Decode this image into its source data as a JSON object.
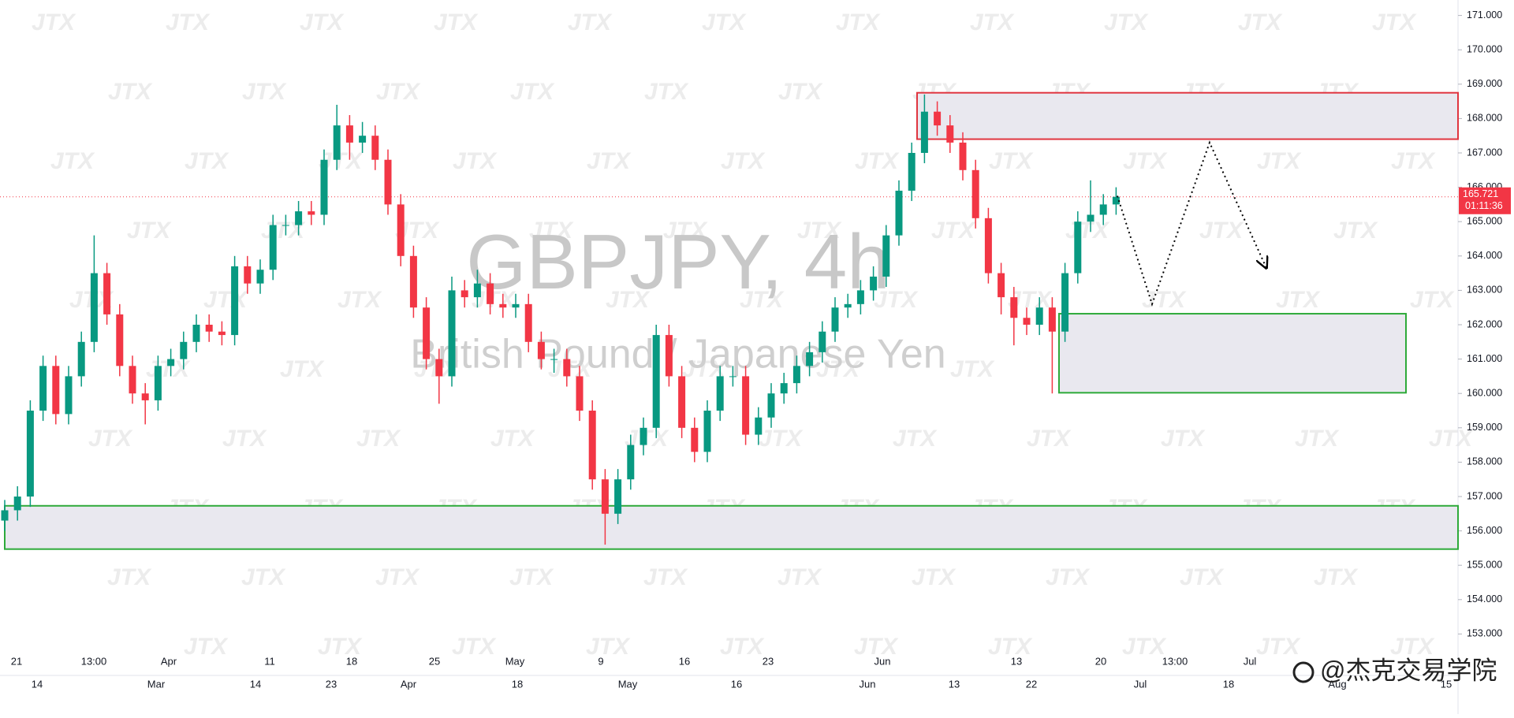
{
  "chart_data": {
    "type": "candlestick",
    "title": "GBPJPY, 4h",
    "subtitle": "British Pound / Japanese Yen",
    "watermark": "JTX",
    "brand": "@杰克交易学院",
    "countdown": "01:11:36",
    "up_color": "#089981",
    "down_color": "#f23645",
    "ylim": [
      153,
      171
    ],
    "yticks": [
      {
        "value": 153,
        "label": "153.000"
      },
      {
        "value": 154,
        "label": "154.000"
      },
      {
        "value": 155,
        "label": "155.000"
      },
      {
        "value": 156,
        "label": "156.000"
      },
      {
        "value": 157,
        "label": "157.000"
      },
      {
        "value": 158,
        "label": "158.000"
      },
      {
        "value": 159,
        "label": "159.000"
      },
      {
        "value": 160,
        "label": "160.000"
      },
      {
        "value": 161,
        "label": "161.000"
      },
      {
        "value": 162,
        "label": "162.000"
      },
      {
        "value": 163,
        "label": "163.000"
      },
      {
        "value": 164,
        "label": "164.000"
      },
      {
        "value": 165,
        "label": "165.000"
      },
      {
        "value": 166,
        "label": "166.000"
      },
      {
        "value": 167,
        "label": "167.000"
      },
      {
        "value": 168,
        "label": "168.000"
      },
      {
        "value": 169,
        "label": "169.000"
      },
      {
        "value": 170,
        "label": "170.000"
      },
      {
        "value": 171,
        "label": "171.000"
      }
    ],
    "xlabels_top": [
      "21",
      "13:00",
      "Apr",
      "11",
      "18",
      "25",
      "May",
      "9",
      "16",
      "23",
      "Jun",
      "13",
      "20",
      "13:00",
      "Jul"
    ],
    "xlabels_bottom": [
      "14",
      "Mar",
      "14",
      "23",
      "Apr",
      "18",
      "May",
      "16",
      "Jun",
      "13",
      "22",
      "Jul",
      "18",
      "Aug",
      "15"
    ],
    "open": [
      156.3,
      156.6,
      157.0,
      159.5,
      160.8,
      159.4,
      160.5,
      161.5,
      163.5,
      162.3,
      160.8,
      160.0,
      159.8,
      160.8,
      161.0,
      161.5,
      162.0,
      161.8,
      161.7,
      163.7,
      163.2,
      163.6,
      164.9,
      164.9,
      165.3,
      165.2,
      166.8,
      167.8,
      167.3,
      167.5,
      166.8,
      165.5,
      164.0,
      162.5,
      161.0,
      160.5,
      163.0,
      162.8,
      163.2,
      162.6,
      162.5,
      162.6,
      161.5,
      161.0,
      161.0,
      160.5,
      159.5,
      157.5,
      156.5,
      157.5,
      158.5,
      159.0,
      161.7,
      160.5,
      159.0,
      158.3,
      159.5,
      160.5,
      160.5,
      158.8,
      159.3,
      160.0,
      160.3,
      160.8,
      161.2,
      161.8,
      162.5,
      162.6,
      163.0,
      163.4,
      164.6,
      165.9,
      167.0,
      168.2,
      167.8,
      167.3,
      166.5,
      165.1,
      163.5,
      162.8,
      162.2,
      162.0,
      162.5,
      161.8,
      163.5,
      165.0,
      165.2,
      165.5
    ],
    "high": [
      156.9,
      157.3,
      159.8,
      161.1,
      161.1,
      160.8,
      161.8,
      164.6,
      163.8,
      162.6,
      161.1,
      160.3,
      161.1,
      161.3,
      161.8,
      162.3,
      162.3,
      162.1,
      164.0,
      164.0,
      163.9,
      165.2,
      165.2,
      165.6,
      165.6,
      167.1,
      168.4,
      168.1,
      167.9,
      167.8,
      167.1,
      165.8,
      164.3,
      162.8,
      161.3,
      163.4,
      163.3,
      163.6,
      163.5,
      162.9,
      162.9,
      162.9,
      161.8,
      161.3,
      161.3,
      160.8,
      159.8,
      157.8,
      157.8,
      158.8,
      159.3,
      162.0,
      162.0,
      160.8,
      159.3,
      159.8,
      160.8,
      160.8,
      160.8,
      159.6,
      160.3,
      160.6,
      161.1,
      161.5,
      162.1,
      162.8,
      162.9,
      163.3,
      163.7,
      164.9,
      166.2,
      167.3,
      168.7,
      168.5,
      168.1,
      167.6,
      166.8,
      165.4,
      163.8,
      163.1,
      162.5,
      162.8,
      162.8,
      163.8,
      165.3,
      166.2,
      165.8,
      166.0
    ],
    "low": [
      156.0,
      156.3,
      156.7,
      159.2,
      159.1,
      159.1,
      160.2,
      161.2,
      162.0,
      160.5,
      159.7,
      159.1,
      159.5,
      160.5,
      160.7,
      161.2,
      161.5,
      161.4,
      161.4,
      162.9,
      162.9,
      163.3,
      164.6,
      164.6,
      164.9,
      164.9,
      166.5,
      166.8,
      167.0,
      166.5,
      165.2,
      163.7,
      162.2,
      160.7,
      159.7,
      160.2,
      162.5,
      162.5,
      162.3,
      162.2,
      162.2,
      161.2,
      160.7,
      160.6,
      160.2,
      159.2,
      157.2,
      155.6,
      156.2,
      157.2,
      158.2,
      158.7,
      160.2,
      158.7,
      158.0,
      158.0,
      159.2,
      160.2,
      158.5,
      158.5,
      159.0,
      159.7,
      160.0,
      160.5,
      160.9,
      161.5,
      162.2,
      162.3,
      162.7,
      163.1,
      164.3,
      165.6,
      166.7,
      167.5,
      167.0,
      166.2,
      164.8,
      163.2,
      162.3,
      161.4,
      161.7,
      161.7,
      160.0,
      161.5,
      163.2,
      164.7,
      164.9,
      165.2
    ],
    "close": [
      156.6,
      157.0,
      159.5,
      160.8,
      159.4,
      160.5,
      161.5,
      163.5,
      162.3,
      160.8,
      160.0,
      159.8,
      160.8,
      161.0,
      161.5,
      162.0,
      161.8,
      161.7,
      163.7,
      163.2,
      163.6,
      164.9,
      164.9,
      165.3,
      165.2,
      166.8,
      167.8,
      167.3,
      167.5,
      166.8,
      165.5,
      164.0,
      162.5,
      161.0,
      160.5,
      163.0,
      162.8,
      163.2,
      162.6,
      162.5,
      162.6,
      161.5,
      161.0,
      161.0,
      160.5,
      159.5,
      157.5,
      156.5,
      157.5,
      158.5,
      159.0,
      161.7,
      160.5,
      159.0,
      158.3,
      159.5,
      160.5,
      160.5,
      158.8,
      159.3,
      160.0,
      160.3,
      160.8,
      161.2,
      161.8,
      162.5,
      162.6,
      163.0,
      163.4,
      164.6,
      165.9,
      167.0,
      168.2,
      167.8,
      167.3,
      166.5,
      165.1,
      163.5,
      162.8,
      162.2,
      162.0,
      162.5,
      161.8,
      163.5,
      165.0,
      165.2,
      165.5,
      165.721
    ],
    "zones": [
      {
        "top": 168.75,
        "bottom": 167.4,
        "color": "#e0353f"
      },
      {
        "top": 162.32,
        "bottom": 160.02,
        "color": "#2eaa3a"
      },
      {
        "top": 156.73,
        "bottom": 155.47,
        "color": "#2eaa3a"
      }
    ],
    "projection": [
      165.75,
      162.6,
      167.3,
      163.65
    ]
  }
}
